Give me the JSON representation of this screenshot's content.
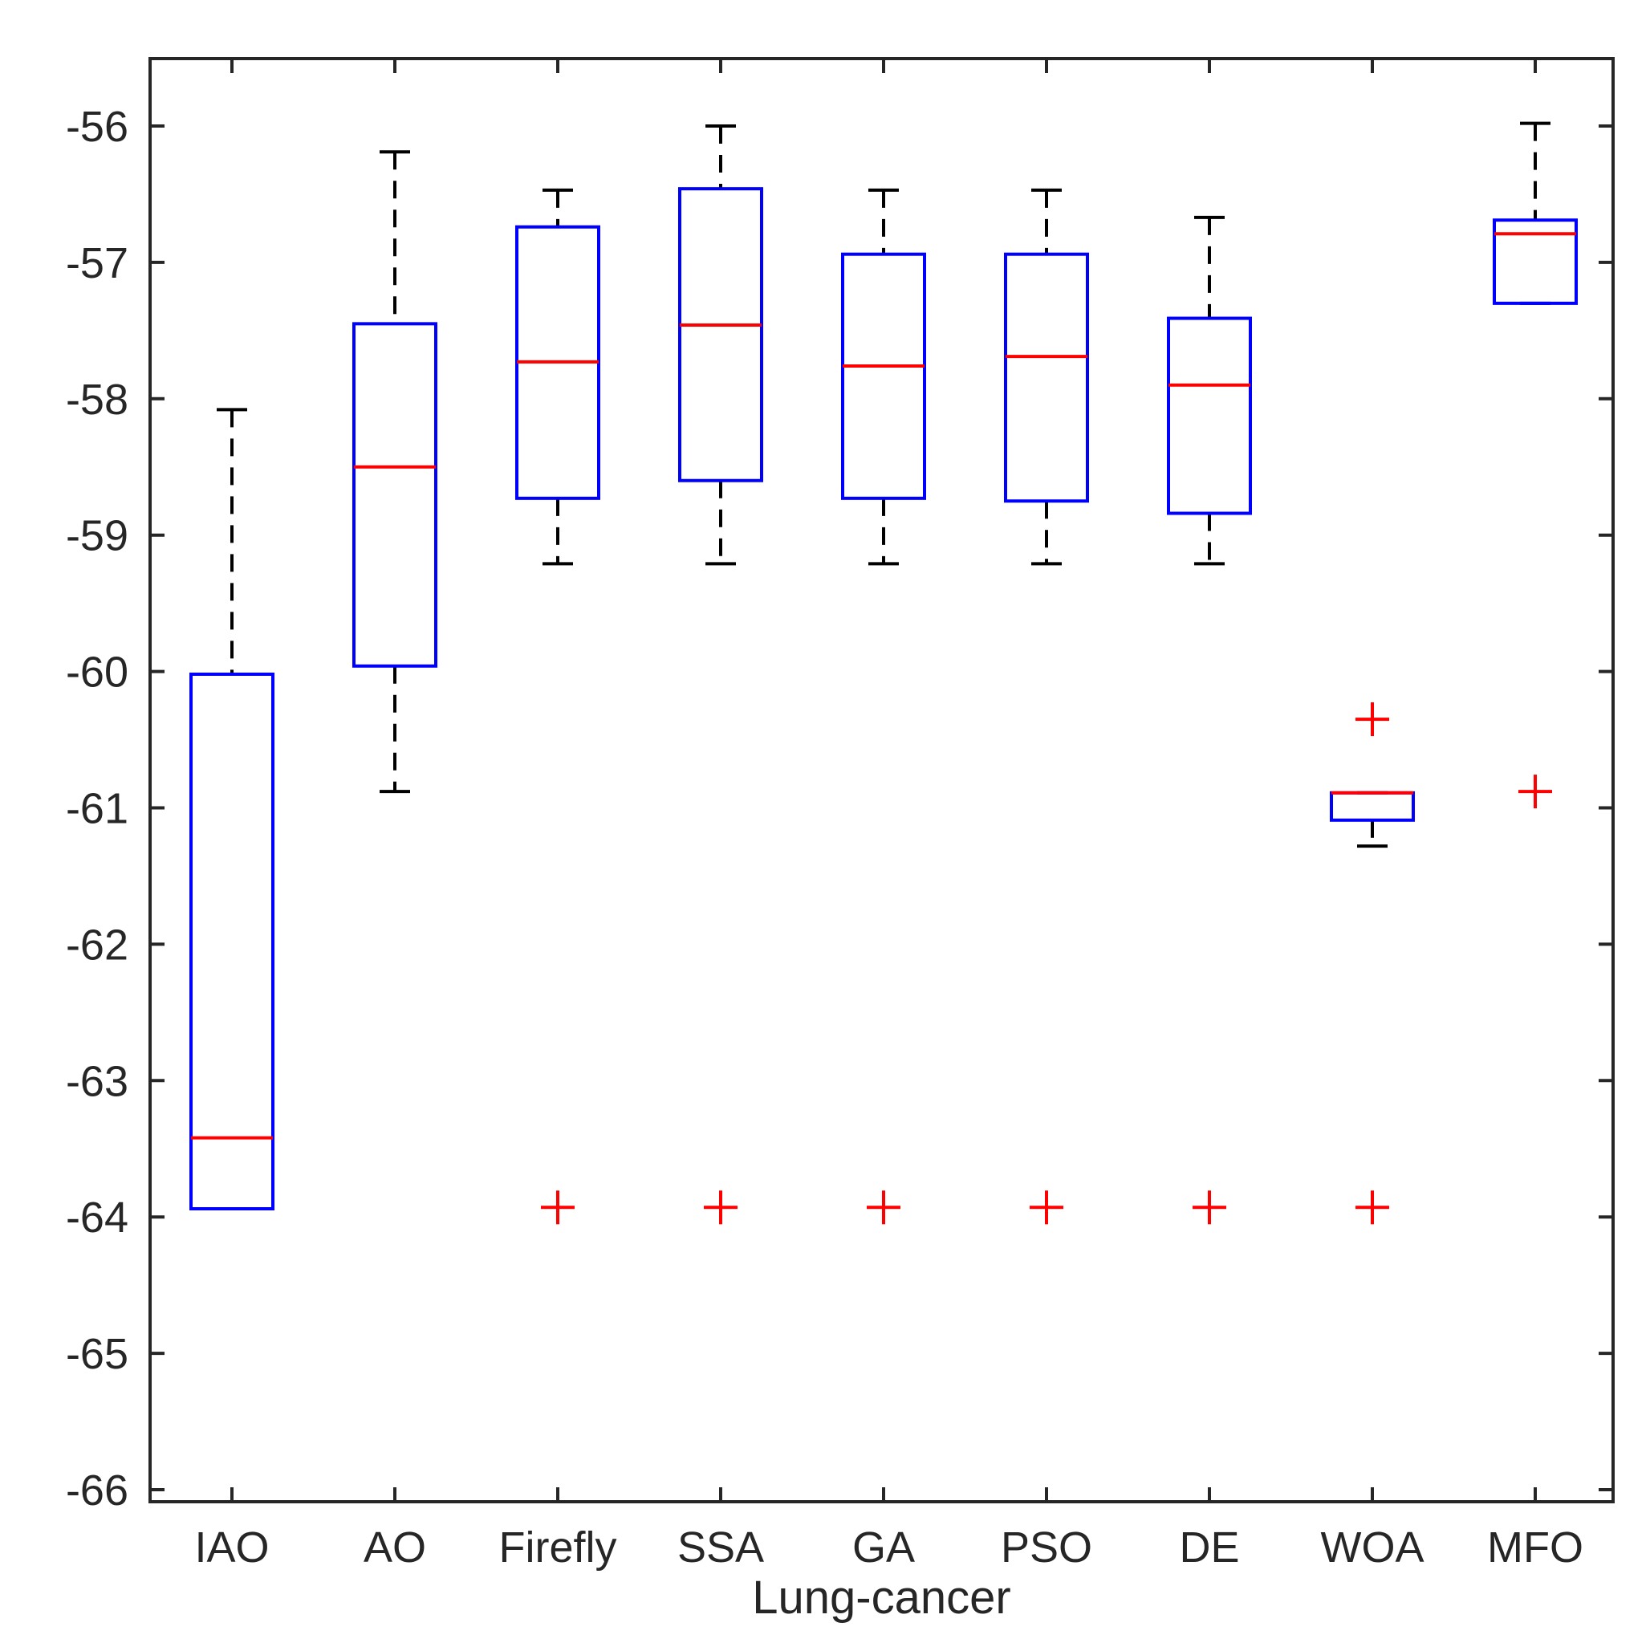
{
  "chart_data": {
    "type": "boxplot",
    "title": "",
    "xlabel": "Lung-cancer",
    "ylabel": "",
    "ylim": [
      -66.1,
      -55.5
    ],
    "yticks": [
      -56,
      -57,
      -58,
      -59,
      -60,
      -61,
      -62,
      -63,
      -64,
      -65,
      -66
    ],
    "ytick_labels": [
      "-56",
      "-57",
      "-58",
      "-59",
      "-60",
      "-61",
      "-62",
      "-63",
      "-64",
      "-65",
      "-66"
    ],
    "categories": [
      "IAO",
      "AO",
      "Firefly",
      "SSA",
      "GA",
      "PSO",
      "DE",
      "WOA",
      "MFO"
    ],
    "boxes": [
      {
        "name": "IAO",
        "whisker_high": -58.08,
        "q3": -60.02,
        "median": -63.42,
        "q1": -63.94,
        "whisker_low": -63.94,
        "outliers": []
      },
      {
        "name": "AO",
        "whisker_high": -56.19,
        "q3": -57.45,
        "median": -58.5,
        "q1": -59.96,
        "whisker_low": -60.88,
        "outliers": []
      },
      {
        "name": "Firefly",
        "whisker_high": -56.47,
        "q3": -56.74,
        "median": -57.73,
        "q1": -58.73,
        "whisker_low": -59.21,
        "outliers": [
          -63.93
        ]
      },
      {
        "name": "SSA",
        "whisker_high": -56.0,
        "q3": -56.46,
        "median": -57.46,
        "q1": -58.6,
        "whisker_low": -59.21,
        "outliers": [
          -63.93
        ]
      },
      {
        "name": "GA",
        "whisker_high": -56.47,
        "q3": -56.94,
        "median": -57.76,
        "q1": -58.73,
        "whisker_low": -59.21,
        "outliers": [
          -63.93
        ]
      },
      {
        "name": "PSO",
        "whisker_high": -56.47,
        "q3": -56.94,
        "median": -57.69,
        "q1": -58.75,
        "whisker_low": -59.21,
        "outliers": [
          -63.93
        ]
      },
      {
        "name": "DE",
        "whisker_high": -56.67,
        "q3": -57.41,
        "median": -57.9,
        "q1": -58.84,
        "whisker_low": -59.21,
        "outliers": [
          -63.93
        ]
      },
      {
        "name": "WOA",
        "whisker_high": -60.89,
        "q3": -60.89,
        "median": -60.89,
        "q1": -61.09,
        "whisker_low": -61.28,
        "outliers": [
          -60.35,
          -63.93
        ]
      },
      {
        "name": "MFO",
        "whisker_high": -55.98,
        "q3": -56.69,
        "median": -56.79,
        "q1": -57.3,
        "whisker_low": -57.3,
        "outliers": [
          -60.88
        ]
      }
    ],
    "colors": {
      "box": "#0000ff",
      "median": "#ff0000",
      "whisker": "#000000",
      "outlier": "#ff0000",
      "axis": "#262626"
    }
  }
}
